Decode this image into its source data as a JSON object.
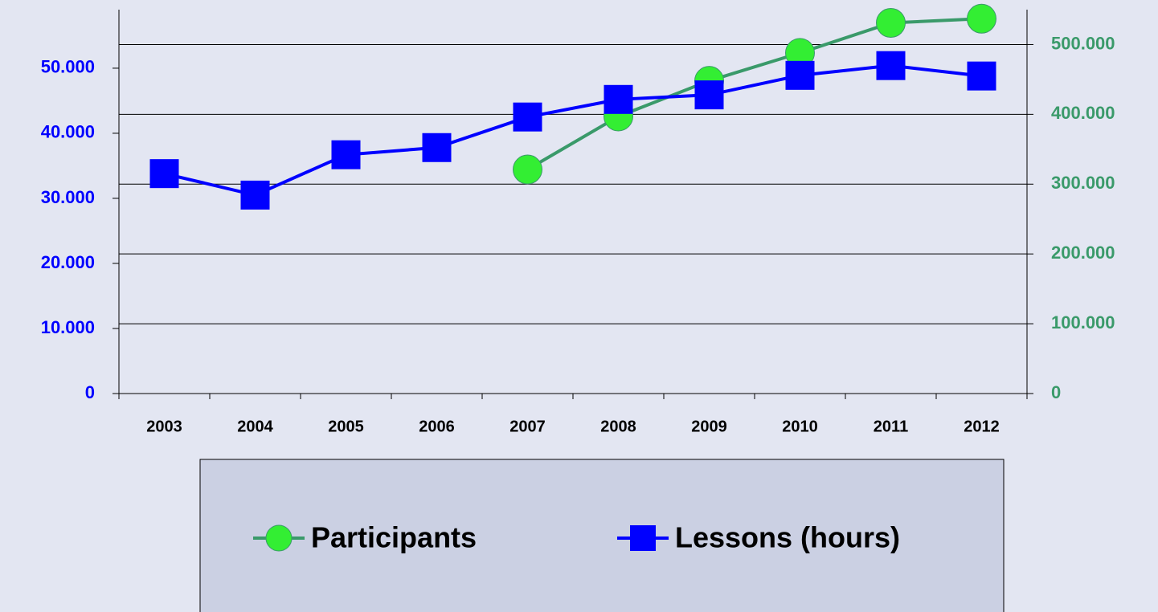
{
  "chart_data": {
    "type": "line",
    "categories": [
      "2003",
      "2004",
      "2005",
      "2006",
      "2007",
      "2008",
      "2009",
      "2010",
      "2011",
      "2012"
    ],
    "series": [
      {
        "name": "Participants",
        "color": "#3a9a6a",
        "marker_color": "#33ee33",
        "axis": "y2",
        "values": [
          null,
          null,
          null,
          null,
          321000,
          397000,
          448000,
          488000,
          531000,
          537000
        ]
      },
      {
        "name": "Lessons (hours)",
        "color": "#0000ff",
        "marker_color": "#0000ff",
        "values": [
          33800,
          30500,
          36700,
          37800,
          42500,
          45200,
          45900,
          48900,
          50400,
          48800
        ]
      }
    ],
    "ylim": [
      0,
      59000
    ],
    "yticks": [
      0,
      {
        "value": 10000,
        "label": "10.000"
      },
      {
        "value": 20000,
        "label": "20.000"
      },
      {
        "value": 30000,
        "label": "30.000"
      },
      {
        "value": 40000,
        "label": "40.000"
      },
      {
        "value": 50000,
        "label": "50.000"
      }
    ],
    "y2lim": [
      0,
      550000
    ],
    "y2ticks": [
      0,
      {
        "value": 100000,
        "label": "100.000"
      },
      {
        "value": 200000,
        "label": "200.000"
      },
      {
        "value": 300000,
        "label": "300.000"
      },
      {
        "value": 400000,
        "label": "400.000"
      },
      {
        "value": 500000,
        "label": "500.000"
      }
    ],
    "y_color": "#0000ff",
    "y2_color": "#3a9a6a",
    "grid": "y2",
    "legend": "bottom"
  }
}
